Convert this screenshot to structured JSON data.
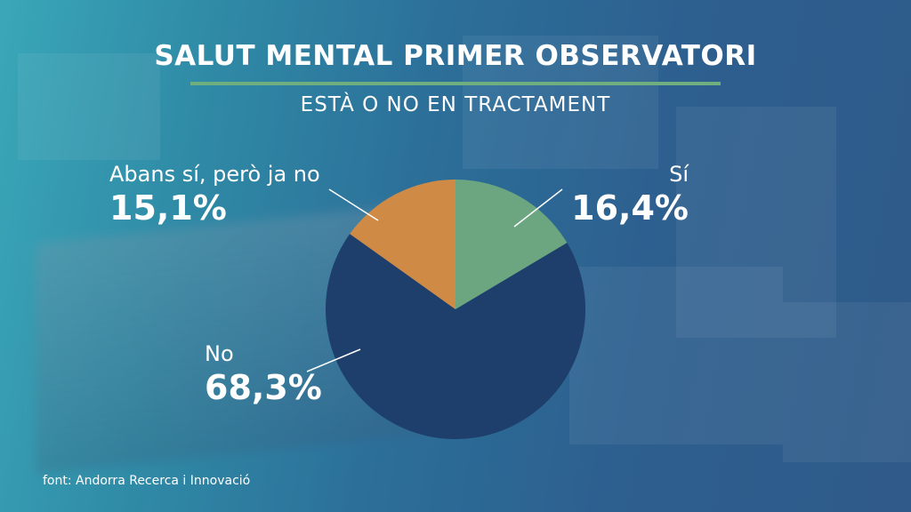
{
  "chart_data": {
    "type": "pie",
    "title": "SALUT MENTAL PRIMER OBSERVATORI",
    "subtitle": "ESTÀ O NO EN TRACTAMENT",
    "slices": [
      {
        "label": "Sí",
        "value": 16.4,
        "value_text": "16,4%",
        "color": "#6ba681"
      },
      {
        "label": "No",
        "value": 68.3,
        "value_text": "68,3%",
        "color": "#1e3e6b"
      },
      {
        "label": "Abans sí, però ja no",
        "value": 15.1,
        "value_text": "15,1%",
        "color": "#cf8a46"
      }
    ],
    "start": "12 o'clock, clockwise",
    "source": "font: Andorra Recerca i Innovació"
  },
  "colors": {
    "accent_rule": "#6fae7e",
    "leader_line": "#ffffff"
  }
}
